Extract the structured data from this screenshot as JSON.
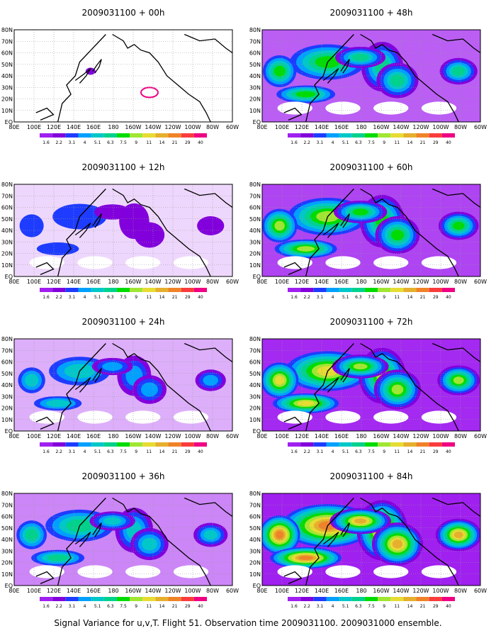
{
  "figure": {
    "caption": "Signal Variance for u,v,T. Flight 51. Observation time 2009031100. 2009031000 ensemble."
  },
  "legend": {
    "levels": [
      "1.6",
      "2.2",
      "3.1",
      "4",
      "5.1",
      "6.3",
      "7.5",
      "9",
      "11",
      "14",
      "21",
      "29",
      "40"
    ],
    "colors": [
      "#a020f0",
      "#8200dc",
      "#1e3cff",
      "#00a0ff",
      "#00c8c8",
      "#00d28c",
      "#00dc00",
      "#a0e632",
      "#e6dc32",
      "#e6af2d",
      "#f08228",
      "#fa3c3c",
      "#f00082"
    ]
  },
  "axes": {
    "lon_labels": [
      "80E",
      "100E",
      "120E",
      "140E",
      "160E",
      "180",
      "160W",
      "140W",
      "120W",
      "100W",
      "80W",
      "60W"
    ],
    "lat_labels": [
      "80N",
      "70N",
      "60N",
      "50N",
      "40N",
      "30N",
      "20N",
      "10N",
      "EQ"
    ]
  },
  "panels": [
    {
      "title": "2009031100 + 00h",
      "intensity": 0.0
    },
    {
      "title": "2009031100 + 48h",
      "intensity": 0.6
    },
    {
      "title": "2009031100 + 12h",
      "intensity": 0.15
    },
    {
      "title": "2009031100 + 60h",
      "intensity": 0.7
    },
    {
      "title": "2009031100 + 24h",
      "intensity": 0.3
    },
    {
      "title": "2009031100 + 72h",
      "intensity": 0.8
    },
    {
      "title": "2009031100 + 36h",
      "intensity": 0.45
    },
    {
      "title": "2009031100 + 84h",
      "intensity": 0.95
    }
  ]
}
